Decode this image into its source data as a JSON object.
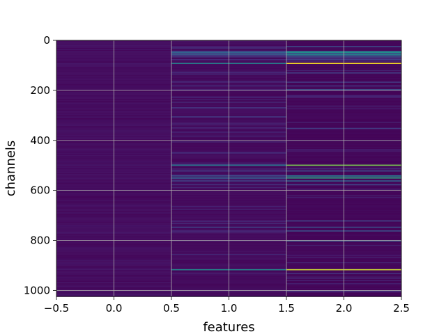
{
  "chart_data": {
    "type": "heatmap",
    "title": "",
    "xlabel": "features",
    "ylabel": "channels",
    "xlim": [
      -0.5,
      2.5
    ],
    "ylim": [
      1024,
      0
    ],
    "y_inverted": true,
    "grid": true,
    "colormap": "viridis",
    "columns": [
      0,
      1,
      2
    ],
    "rows": 1024,
    "x_ticks": [
      -0.5,
      0.0,
      0.5,
      1.0,
      1.5,
      2.0,
      2.5
    ],
    "x_tick_labels": [
      "−0.5",
      "0.0",
      "0.5",
      "1.0",
      "1.5",
      "2.0",
      "2.5"
    ],
    "y_ticks": [
      0,
      200,
      400,
      600,
      800,
      1000
    ],
    "y_tick_labels": [
      "0",
      "200",
      "400",
      "600",
      "800",
      "1000"
    ],
    "highlighted_channels": [
      {
        "channel": 23,
        "values": [
          0.06,
          0.12,
          0.3
        ]
      },
      {
        "channel": 42,
        "values": [
          0.07,
          0.3,
          0.55
        ]
      },
      {
        "channel": 47,
        "values": [
          0.06,
          0.4,
          0.62
        ]
      },
      {
        "channel": 50,
        "values": [
          0.05,
          0.28,
          0.35
        ]
      },
      {
        "channel": 55,
        "values": [
          0.06,
          0.35,
          0.58
        ]
      },
      {
        "channel": 58,
        "values": [
          0.05,
          0.22,
          0.4
        ]
      },
      {
        "channel": 64,
        "values": [
          0.06,
          0.18,
          0.28
        ]
      },
      {
        "channel": 75,
        "values": [
          0.05,
          0.15,
          0.22
        ]
      },
      {
        "channel": 90,
        "values": [
          0.08,
          0.55,
          1.0
        ]
      },
      {
        "channel": 128,
        "values": [
          0.05,
          0.14,
          0.22
        ]
      },
      {
        "channel": 165,
        "values": [
          0.05,
          0.12,
          0.2
        ]
      },
      {
        "channel": 180,
        "values": [
          0.05,
          0.16,
          0.18
        ]
      },
      {
        "channel": 195,
        "values": [
          0.06,
          0.12,
          0.3
        ]
      },
      {
        "channel": 225,
        "values": [
          0.05,
          0.14,
          0.15
        ]
      },
      {
        "channel": 350,
        "values": [
          0.05,
          0.1,
          0.22
        ]
      },
      {
        "channel": 497,
        "values": [
          0.08,
          0.52,
          0.85
        ]
      },
      {
        "channel": 520,
        "values": [
          0.05,
          0.22,
          0.3
        ]
      },
      {
        "channel": 540,
        "values": [
          0.06,
          0.3,
          0.55
        ]
      },
      {
        "channel": 548,
        "values": [
          0.07,
          0.4,
          0.7
        ]
      },
      {
        "channel": 560,
        "values": [
          0.05,
          0.25,
          0.4
        ]
      },
      {
        "channel": 575,
        "values": [
          0.05,
          0.18,
          0.25
        ]
      },
      {
        "channel": 720,
        "values": [
          0.05,
          0.12,
          0.25
        ]
      },
      {
        "channel": 745,
        "values": [
          0.06,
          0.25,
          0.3
        ]
      },
      {
        "channel": 760,
        "values": [
          0.05,
          0.15,
          0.3
        ]
      },
      {
        "channel": 800,
        "values": [
          0.05,
          0.1,
          0.35
        ]
      },
      {
        "channel": 915,
        "values": [
          0.08,
          0.6,
          0.95
        ]
      },
      {
        "channel": 930,
        "values": [
          0.05,
          0.1,
          0.18
        ]
      },
      {
        "channel": 1000,
        "values": [
          0.05,
          0.08,
          0.15
        ]
      }
    ]
  }
}
